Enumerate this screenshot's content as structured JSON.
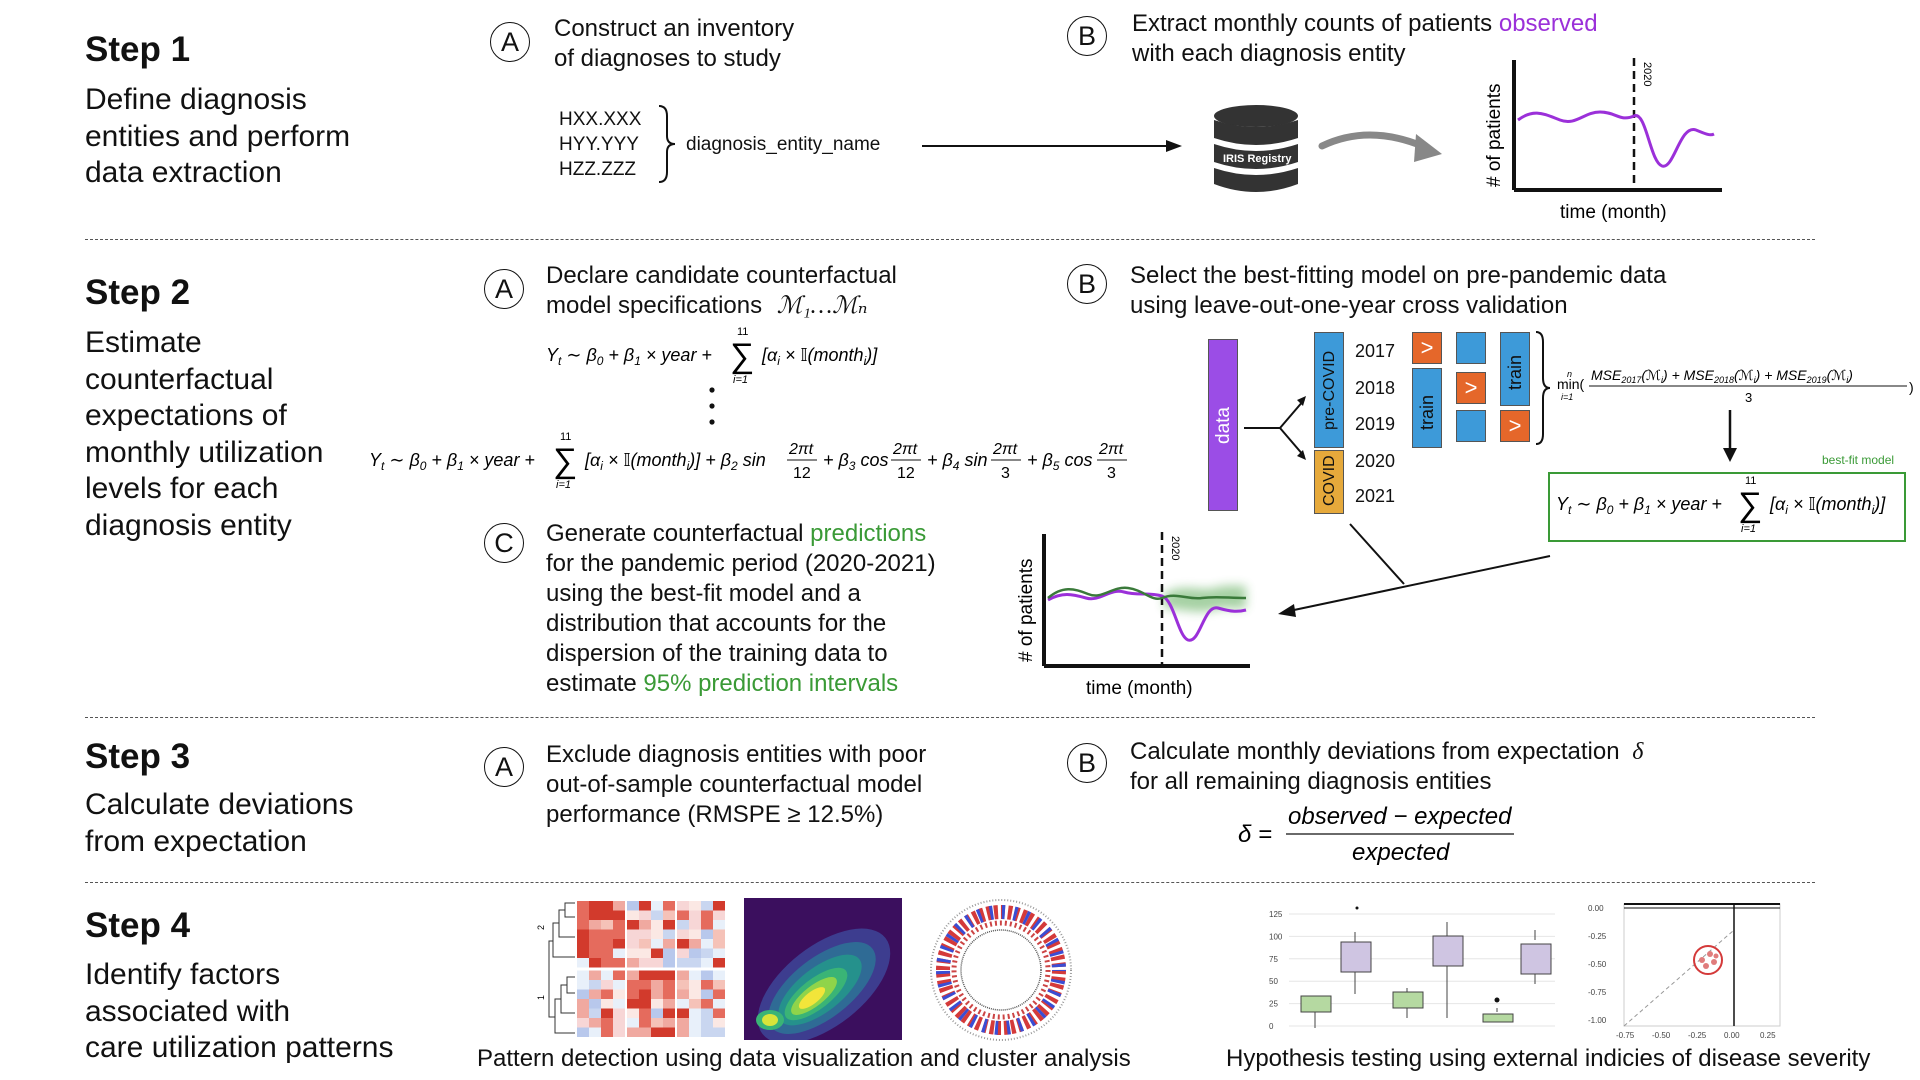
{
  "steps": [
    {
      "title": "Step 1",
      "desc": [
        "Define diagnosis",
        "entities and perform",
        "data extraction"
      ]
    },
    {
      "title": "Step 2",
      "desc": [
        "Estimate",
        "counterfactual",
        "expectations of",
        "monthly utilization",
        "levels for each",
        "diagnosis entity"
      ]
    },
    {
      "title": "Step 3",
      "desc": [
        "Calculate deviations",
        "from expectation"
      ]
    },
    {
      "title": "Step 4",
      "desc": [
        "Identify factors",
        "associated with",
        "care utilization patterns"
      ]
    }
  ],
  "step1": {
    "a_label": "A",
    "a_text": [
      "Construct an inventory",
      "of diagnoses to study"
    ],
    "codes": [
      "HXX.XXX",
      "HYY.YYY",
      "HZZ.ZZZ"
    ],
    "entity_name": "diagnosis_entity_name",
    "b_label": "B",
    "b_text_1": "Extract monthly counts of patients ",
    "b_text_highlight": "observed",
    "b_text_2": "with each diagnosis entity",
    "db_label": "IRIS Registry",
    "chart": {
      "ylabel": "# of patients",
      "xlabel": "time (month)",
      "marker": "2020"
    }
  },
  "step2": {
    "a_label": "A",
    "a_text_1": "Declare candidate counterfactual",
    "a_text_2": "model specifications",
    "a_models": "ℳ₁…ℳₙ",
    "b_label": "B",
    "b_text": [
      "Select the best-fitting model on pre-pandemic data",
      "using leave-out-one-year cross validation"
    ],
    "c_label": "C",
    "c_text_1": "Generate counterfactual ",
    "c_text_highlight_1": "predictions",
    "c_text_lines": [
      "for the pandemic period (2020-2021)",
      "using the best-fit model and a",
      "distribution that accounts for the",
      "dispersion of the training data to"
    ],
    "c_text_last_1": "estimate ",
    "c_text_highlight_2": "95% prediction intervals",
    "cv": {
      "data_label": "data",
      "precovid_label": "pre-COVID",
      "covid_label": "COVID",
      "years": [
        "2017",
        "2018",
        "2019",
        "2020",
        "2021"
      ],
      "train_label": "train",
      "test_symbol": ">"
    },
    "best_fit_label": "best-fit model",
    "chart": {
      "ylabel": "# of patients",
      "xlabel": "time (month)",
      "marker": "2020"
    }
  },
  "step3": {
    "a_label": "A",
    "a_text": [
      "Exclude diagnosis entities with poor",
      "out-of-sample counterfactual model",
      "performance (RMSPE ≥ 12.5%)"
    ],
    "b_label": "B",
    "b_text_1": "Calculate monthly deviations from expectation",
    "b_delta": "δ",
    "b_text_2": "for all remaining diagnosis entities"
  },
  "step4": {
    "caption_left": "Pattern detection using data visualization and cluster analysis",
    "caption_right": "Hypothesis testing using external indicies of disease severity",
    "heatmap_row_labels": [
      "2",
      "1"
    ],
    "boxplot_yticks": [
      "125",
      "100",
      "75",
      "50",
      "25",
      "0"
    ],
    "scatter_yticks": [
      "0.00",
      "-0.25",
      "-0.50",
      "-0.75",
      "-1.00"
    ],
    "scatter_xticks": [
      "-0.75",
      "-0.50",
      "-0.25",
      "0.00",
      "0.25"
    ]
  },
  "colors": {
    "purple": "#9b30d9",
    "green": "#3a9a36",
    "blue": "#3d9ad9",
    "orange": "#e5672a",
    "gold": "#e6a93b",
    "violet": "#9b4de6"
  }
}
